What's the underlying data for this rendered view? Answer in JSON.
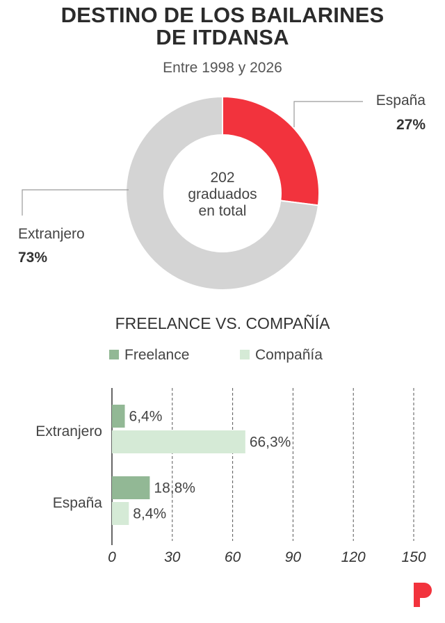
{
  "title_line1": "DESTINO DE LOS BAILARINES",
  "title_line2": "DE ITDANSA",
  "subtitle": "Entre 1998 y 2026",
  "colors": {
    "spain": "#f2333d",
    "abroad": "#d4d4d4",
    "freelance": "#92b895",
    "company": "#d5ead6"
  },
  "chart_data": [
    {
      "type": "pie",
      "center_label": [
        "202",
        "graduados",
        "en total"
      ],
      "slices": [
        {
          "label": "España",
          "value": 27,
          "value_label": "27%"
        },
        {
          "label": "Extranjero",
          "value": 73,
          "value_label": "73%"
        }
      ]
    },
    {
      "type": "bar",
      "orientation": "horizontal",
      "title": "FREELANCE VS. COMPAÑÍA",
      "legend": [
        "Freelance",
        "Compañía"
      ],
      "categories": [
        "Extranjero",
        "España"
      ],
      "series": [
        {
          "name": "Freelance",
          "values": [
            6.4,
            18.8
          ],
          "labels": [
            "6,4%",
            "18,8%"
          ]
        },
        {
          "name": "Compañía",
          "values": [
            66.3,
            8.4
          ],
          "labels": [
            "66,3%",
            "8,4%"
          ]
        }
      ],
      "xticks": [
        "0",
        "30",
        "60",
        "90",
        "120",
        "150"
      ],
      "xlim": [
        0,
        150
      ],
      "grid": true
    }
  ]
}
